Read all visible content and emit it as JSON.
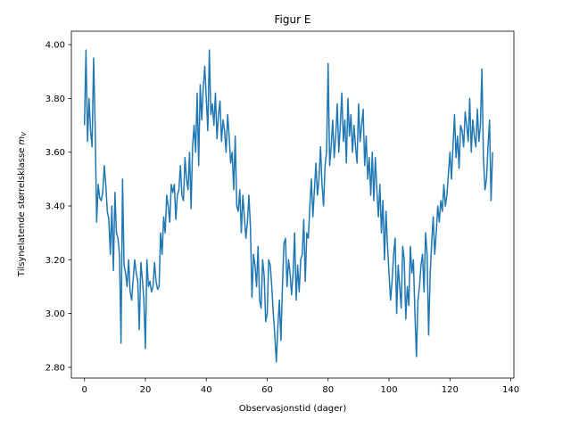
{
  "chart_data": {
    "type": "line",
    "title": "Figur E",
    "xlabel": "Observasjonstid (dager)",
    "ylabel": "Tilsynelatende størrelsklasse m_V",
    "ylabel_main": "Tilsynelatende størrelsklasse ",
    "ylabel_math": "m",
    "ylabel_sub": "V",
    "xlim": [
      -4.3,
      141.0
    ],
    "ylim": [
      2.76,
      4.05
    ],
    "xticks": [
      0,
      20,
      40,
      60,
      80,
      100,
      120,
      140
    ],
    "xtick_labels": [
      "0",
      "20",
      "40",
      "60",
      "80",
      "100",
      "120",
      "140"
    ],
    "yticks": [
      2.8,
      3.0,
      3.2,
      3.4,
      3.6,
      3.8,
      4.0
    ],
    "ytick_labels": [
      "2.80",
      "3.00",
      "3.20",
      "3.40",
      "3.60",
      "3.80",
      "4.00"
    ],
    "grid": false,
    "series": [
      {
        "color": "#1f77b4",
        "x_start": 0,
        "x_end": 134,
        "values": [
          3.7,
          3.98,
          3.64,
          3.8,
          3.68,
          3.62,
          3.95,
          3.7,
          3.34,
          3.48,
          3.43,
          3.42,
          3.45,
          3.55,
          3.48,
          3.38,
          3.35,
          3.22,
          3.4,
          3.16,
          3.45,
          3.3,
          3.28,
          3.22,
          2.89,
          3.5,
          3.18,
          3.15,
          3.1,
          3.2,
          3.08,
          3.05,
          3.13,
          3.2,
          3.15,
          3.12,
          2.94,
          3.19,
          3.13,
          3.05,
          2.87,
          3.2,
          3.1,
          3.12,
          3.08,
          3.1,
          3.19,
          3.12,
          3.09,
          3.1,
          3.3,
          3.22,
          3.36,
          3.3,
          3.44,
          3.4,
          3.34,
          3.48,
          3.45,
          3.48,
          3.35,
          3.44,
          3.46,
          3.55,
          3.44,
          3.42,
          3.58,
          3.5,
          3.46,
          3.6,
          3.39,
          3.62,
          3.7,
          3.6,
          3.82,
          3.55,
          3.85,
          3.72,
          3.84,
          3.92,
          3.8,
          3.68,
          3.98,
          3.74,
          3.78,
          3.7,
          3.82,
          3.65,
          3.74,
          3.79,
          3.64,
          3.72,
          3.68,
          3.6,
          3.74,
          3.66,
          3.56,
          3.6,
          3.46,
          3.66,
          3.4,
          3.38,
          3.46,
          3.3,
          3.44,
          3.36,
          3.28,
          3.34,
          3.44,
          3.32,
          3.06,
          3.22,
          3.18,
          3.1,
          3.25,
          3.05,
          3.02,
          3.2,
          3.14,
          2.97,
          3.0,
          3.2,
          3.18,
          3.1,
          3.0,
          2.92,
          2.82,
          2.95,
          3.05,
          2.9,
          3.1,
          3.26,
          3.28,
          3.1,
          3.2,
          3.15,
          3.07,
          3.15,
          3.3,
          3.05,
          3.18,
          3.08,
          3.2,
          3.22,
          3.35,
          3.12,
          3.3,
          3.28,
          3.4,
          3.5,
          3.36,
          3.46,
          3.56,
          3.44,
          3.5,
          3.62,
          3.48,
          3.4,
          3.55,
          3.6,
          3.93,
          3.55,
          3.62,
          3.72,
          3.58,
          3.66,
          3.78,
          3.6,
          3.7,
          3.82,
          3.64,
          3.72,
          3.56,
          3.8,
          3.66,
          3.74,
          3.6,
          3.7,
          3.62,
          3.56,
          3.78,
          3.64,
          3.7,
          3.76,
          3.55,
          3.66,
          3.5,
          3.58,
          3.44,
          3.6,
          3.42,
          3.58,
          3.46,
          3.36,
          3.48,
          3.3,
          3.42,
          3.2,
          3.38,
          3.25,
          3.15,
          3.05,
          3.12,
          3.22,
          3.28,
          3.0,
          3.18,
          3.1,
          3.02,
          3.25,
          3.2,
          2.98,
          3.1,
          3.03,
          3.25,
          3.15,
          3.2,
          3.0,
          2.84,
          3.05,
          3.1,
          3.18,
          3.22,
          3.08,
          3.3,
          3.22,
          2.92,
          3.14,
          3.26,
          3.36,
          3.22,
          3.3,
          3.4,
          3.34,
          3.42,
          3.38,
          3.48,
          3.4,
          3.44,
          3.52,
          3.6,
          3.5,
          3.62,
          3.74,
          3.58,
          3.66,
          3.54,
          3.7,
          3.68,
          3.62,
          3.75,
          3.7,
          3.64,
          3.8,
          3.6,
          3.72,
          3.66,
          3.62,
          3.76,
          3.64,
          3.7,
          3.91,
          3.58,
          3.46,
          3.5,
          3.62,
          3.72,
          3.42,
          3.6
        ]
      }
    ]
  }
}
